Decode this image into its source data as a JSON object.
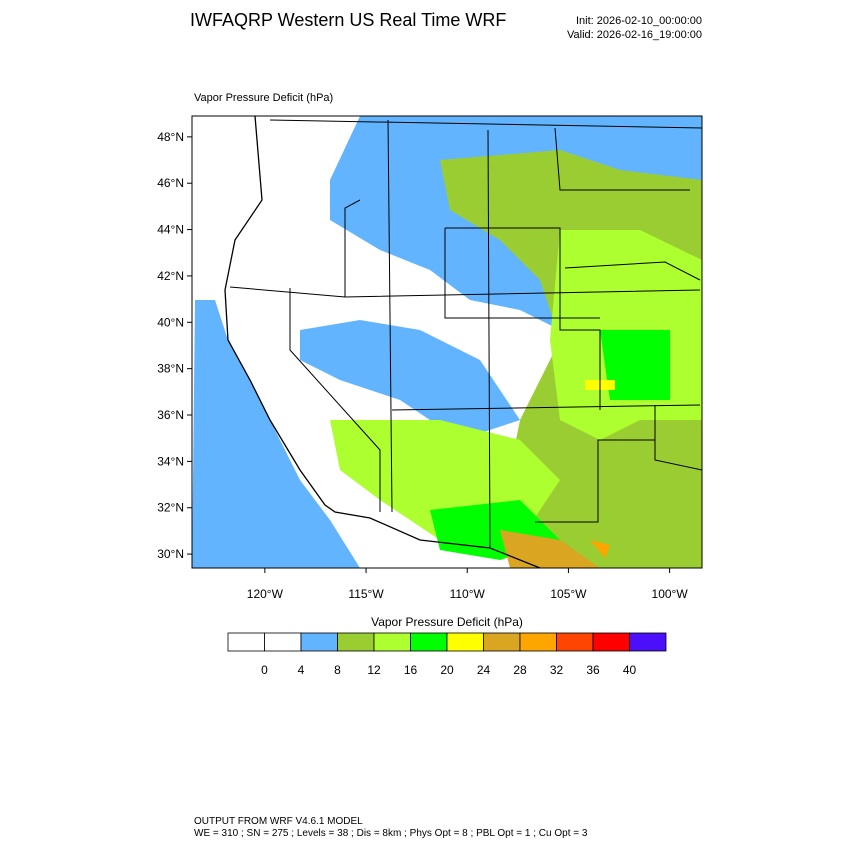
{
  "header": {
    "title": "IWFAQRP Western US Real Time WRF",
    "init": "Init: 2026-02-10_00:00:00",
    "valid": "Valid: 2026-02-16_19:00:00"
  },
  "map": {
    "subtitle": "Vapor Pressure Deficit   (hPa)",
    "lonlim": [
      -123.6,
      -98.4
    ],
    "latlim": [
      29.4,
      48.9
    ],
    "latticks": [
      {
        "value": 48,
        "label": "48°N"
      },
      {
        "value": 46,
        "label": "46°N"
      },
      {
        "value": 44,
        "label": "44°N"
      },
      {
        "value": 42,
        "label": "42°N"
      },
      {
        "value": 40,
        "label": "40°N"
      },
      {
        "value": 38,
        "label": "38°N"
      },
      {
        "value": 36,
        "label": "36°N"
      },
      {
        "value": 34,
        "label": "34°N"
      },
      {
        "value": 32,
        "label": "32°N"
      },
      {
        "value": 30,
        "label": "30°N"
      }
    ],
    "lonticks": [
      {
        "value": -120,
        "label": "120°W"
      },
      {
        "value": -115,
        "label": "115°W"
      },
      {
        "value": -110,
        "label": "110°W"
      },
      {
        "value": -105,
        "label": "105°W"
      },
      {
        "value": -100,
        "label": "100°W"
      }
    ]
  },
  "colorbar": {
    "title": "Vapor Pressure Deficit  (hPa)",
    "levels": [
      0,
      4,
      8,
      12,
      16,
      20,
      24,
      28,
      32,
      36,
      40
    ],
    "colors": [
      "#ffffff",
      "#ffffff",
      "#63b4ff",
      "#9acd32",
      "#adff2f",
      "#00ff00",
      "#ffff00",
      "#daa520",
      "#ffa500",
      "#ff4500",
      "#ff0000",
      "#4b0ffa"
    ]
  },
  "footer": {
    "line1": "OUTPUT FROM WRF V4.6.1 MODEL",
    "line2": "WE = 310 ; SN = 275 ; Levels = 38 ; Dis = 8km ; Phys Opt = 8 ; PBL Opt = 1 ; Cu Opt = 3"
  }
}
